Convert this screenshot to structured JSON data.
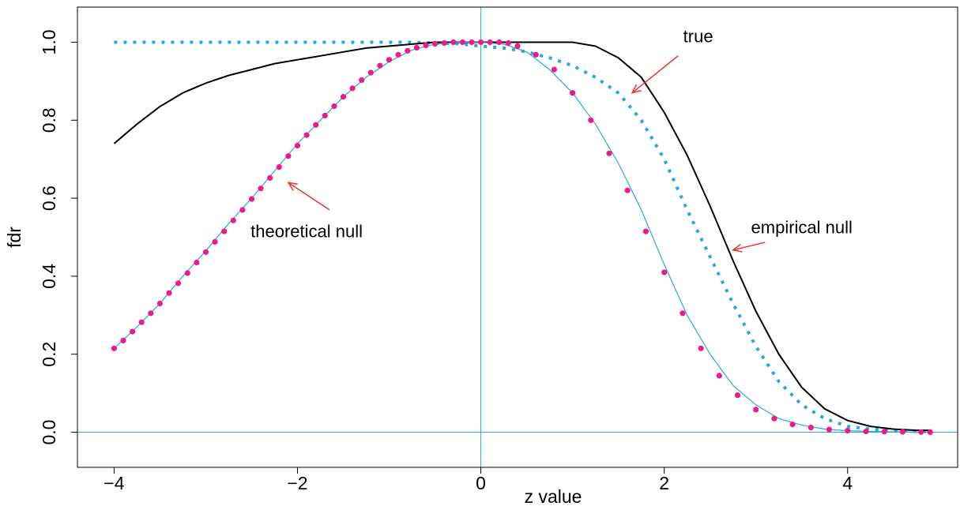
{
  "chart_data": {
    "type": "line",
    "xlabel": "z value",
    "ylabel": "fdr",
    "xlim": [
      -4.4,
      5.2
    ],
    "ylim": [
      -0.09,
      1.09
    ],
    "xticks": [
      -4,
      -2,
      0,
      2,
      4
    ],
    "yticks": [
      0.0,
      0.2,
      0.4,
      0.6,
      0.8,
      1.0
    ],
    "xtick_labels": [
      "−4",
      "−2",
      "0",
      "2",
      "4"
    ],
    "ytick_labels": [
      "0.0",
      "0.2",
      "0.4",
      "0.6",
      "0.8",
      "1.0"
    ],
    "grid": false,
    "reference_lines": {
      "vertical_x": 0,
      "horizontal_y": 0,
      "color": "#29a8e0"
    },
    "series": [
      {
        "style": "solid",
        "color": "#000000",
        "x": [
          -4,
          -3.75,
          -3.5,
          -3.25,
          -3,
          -2.75,
          -2.5,
          -2.25,
          -2,
          -1.75,
          -1.5,
          -1.25,
          -1,
          -0.75,
          -0.5,
          -0.25,
          0,
          0.25,
          0.5,
          0.75,
          1,
          1.25,
          1.5,
          1.75,
          2,
          2.25,
          2.5,
          2.75,
          3,
          3.25,
          3.5,
          3.75,
          4,
          4.25,
          4.5,
          4.75,
          4.9
        ],
        "y": [
          0.74,
          0.79,
          0.835,
          0.87,
          0.895,
          0.915,
          0.93,
          0.945,
          0.955,
          0.965,
          0.975,
          0.985,
          0.99,
          0.995,
          1.0,
          1.0,
          1.0,
          1.0,
          1.0,
          1.0,
          1.0,
          0.99,
          0.96,
          0.91,
          0.82,
          0.71,
          0.58,
          0.44,
          0.31,
          0.2,
          0.115,
          0.06,
          0.03,
          0.015,
          0.008,
          0.005,
          0.005
        ]
      },
      {
        "style": "dotted",
        "color": "#29a8e0",
        "x": [
          -4,
          -3.75,
          -3.5,
          -3.25,
          -3,
          -2.75,
          -2.5,
          -2.25,
          -2,
          -1.75,
          -1.5,
          -1.25,
          -1,
          -0.75,
          -0.5,
          -0.25,
          0,
          0.25,
          0.5,
          0.75,
          1,
          1.25,
          1.5,
          1.75,
          2,
          2.25,
          2.5,
          2.75,
          3,
          3.25,
          3.5,
          3.75,
          4,
          4.25,
          4.5,
          4.75,
          4.9
        ],
        "y": [
          1.0,
          1.0,
          1.0,
          1.0,
          1.0,
          1.0,
          1.0,
          1.0,
          1.0,
          1.0,
          1.0,
          1.0,
          1.0,
          1.0,
          0.998,
          0.996,
          0.99,
          0.985,
          0.975,
          0.96,
          0.94,
          0.91,
          0.87,
          0.8,
          0.7,
          0.57,
          0.45,
          0.33,
          0.22,
          0.13,
          0.07,
          0.035,
          0.015,
          0.008,
          0.004,
          0.002,
          0.001
        ]
      },
      {
        "style": "solid-thin",
        "color": "#29a8e0",
        "x": [
          -4,
          -3.75,
          -3.5,
          -3.25,
          -3,
          -2.75,
          -2.5,
          -2.25,
          -2,
          -1.75,
          -1.5,
          -1.25,
          -1,
          -0.75,
          -0.5,
          -0.25,
          0,
          0.25,
          0.5,
          0.75,
          1,
          1.25,
          1.5,
          1.75,
          2,
          2.25,
          2.5,
          2.75,
          3,
          3.25,
          3.5,
          3.75,
          4,
          4.25,
          4.5,
          4.75,
          4.9
        ],
        "y": [
          0.215,
          0.27,
          0.33,
          0.4,
          0.465,
          0.535,
          0.6,
          0.67,
          0.74,
          0.8,
          0.86,
          0.91,
          0.95,
          0.98,
          0.995,
          1.0,
          1.0,
          0.995,
          0.975,
          0.93,
          0.87,
          0.79,
          0.69,
          0.57,
          0.43,
          0.3,
          0.2,
          0.12,
          0.07,
          0.035,
          0.018,
          0.008,
          0.004,
          0.002,
          0.001,
          0.0005,
          0.0002
        ]
      },
      {
        "style": "markers",
        "color": "#ee1a8c",
        "x": [
          -4,
          -3.9,
          -3.8,
          -3.7,
          -3.6,
          -3.5,
          -3.4,
          -3.3,
          -3.2,
          -3.1,
          -3,
          -2.9,
          -2.8,
          -2.7,
          -2.6,
          -2.5,
          -2.4,
          -2.3,
          -2.2,
          -2.1,
          -2,
          -1.9,
          -1.8,
          -1.7,
          -1.6,
          -1.5,
          -1.4,
          -1.3,
          -1.2,
          -1.1,
          -1,
          -0.9,
          -0.8,
          -0.7,
          -0.6,
          -0.5,
          -0.4,
          -0.3,
          -0.2,
          -0.1,
          0,
          0.1,
          0.2,
          0.3,
          0.4,
          0.6,
          0.8,
          1,
          1.2,
          1.4,
          1.6,
          1.8,
          2,
          2.2,
          2.4,
          2.6,
          2.8,
          3,
          3.2,
          3.4,
          3.6,
          3.8,
          4,
          4.2,
          4.4,
          4.6,
          4.8,
          4.9
        ],
        "y": [
          0.215,
          0.235,
          0.258,
          0.282,
          0.305,
          0.33,
          0.357,
          0.382,
          0.408,
          0.435,
          0.462,
          0.488,
          0.515,
          0.543,
          0.57,
          0.598,
          0.625,
          0.652,
          0.68,
          0.708,
          0.735,
          0.762,
          0.788,
          0.812,
          0.836,
          0.86,
          0.882,
          0.903,
          0.922,
          0.94,
          0.955,
          0.968,
          0.978,
          0.986,
          0.992,
          0.996,
          0.998,
          1.0,
          1.0,
          1.0,
          1.0,
          1.0,
          1.0,
          0.998,
          0.99,
          0.968,
          0.93,
          0.87,
          0.8,
          0.715,
          0.62,
          0.515,
          0.41,
          0.305,
          0.215,
          0.145,
          0.095,
          0.058,
          0.035,
          0.02,
          0.012,
          0.007,
          0.004,
          0.002,
          0.0015,
          0.001,
          0.0005,
          0.0003
        ]
      }
    ],
    "annotations": [
      {
        "text": "true",
        "text_x": 2.37,
        "text_y": 1.0,
        "arrow_from": [
          2.15,
          0.965
        ],
        "arrow_to": [
          1.65,
          0.87
        ],
        "color": "#ee3333"
      },
      {
        "text": "empirical null",
        "text_x": 3.5,
        "text_y": 0.51,
        "arrow_from": [
          3.1,
          0.487
        ],
        "arrow_to": [
          2.75,
          0.467
        ],
        "color": "#ee3333"
      },
      {
        "text": "theoretical null",
        "text_x": -1.9,
        "text_y": 0.5,
        "arrow_from": [
          -1.65,
          0.57
        ],
        "arrow_to": [
          -2.1,
          0.64
        ],
        "color": "#ee3333"
      }
    ]
  }
}
